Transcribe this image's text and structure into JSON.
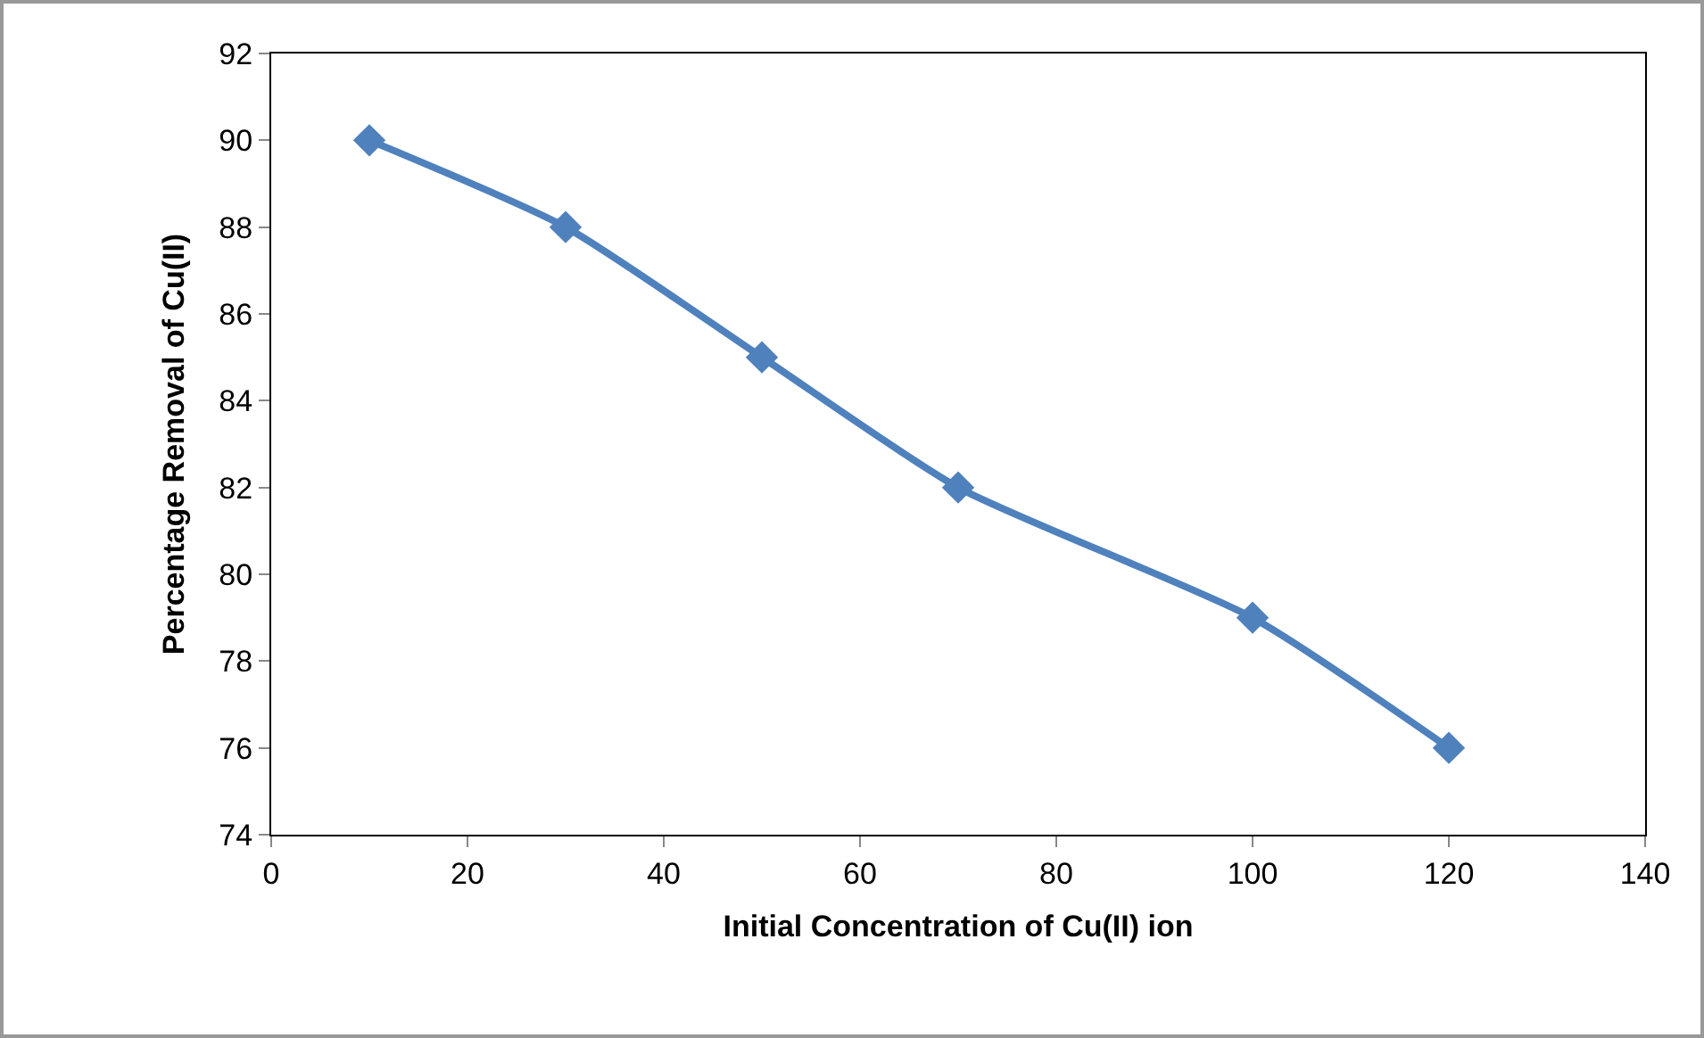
{
  "chart_data": {
    "type": "line",
    "xlabel": "Initial Concentration of Cu(II) ion",
    "ylabel": "Percentage Removal of Cu(II)",
    "x": [
      10,
      30,
      50,
      70,
      100,
      120
    ],
    "series": [
      {
        "color": "#4f81bd",
        "values": [
          90,
          88,
          85,
          82,
          79,
          76
        ]
      }
    ],
    "xlim": [
      0,
      140
    ],
    "xticks": [
      0,
      20,
      40,
      60,
      80,
      100,
      120,
      140
    ],
    "ylim": [
      74,
      92
    ],
    "yticks": [
      74,
      76,
      78,
      80,
      82,
      84,
      86,
      88,
      90,
      92
    ],
    "grid": false,
    "legend": false,
    "marker": "diamond",
    "line_style": "solid"
  }
}
